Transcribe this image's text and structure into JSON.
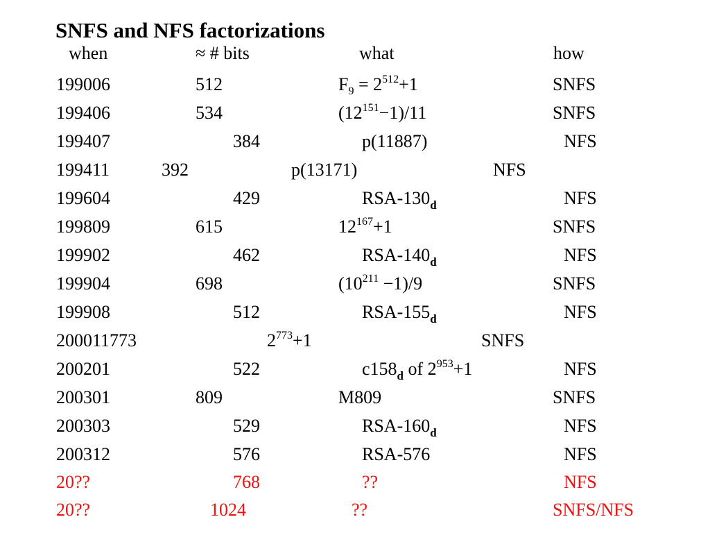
{
  "title": "SNFS and NFS factorizations",
  "headers": {
    "when": "when",
    "bits": "≈ # bits",
    "what": "what",
    "how": "how"
  },
  "rows": [
    {
      "when": "199006",
      "bits": "512",
      "what_base": "F",
      "what_sub": "9",
      "what_mid": " = 2",
      "what_sup": "512",
      "what_tail": "+1",
      "how": "SNFS"
    },
    {
      "when": "199406",
      "bits": "534",
      "what_base": "(12",
      "what_sup": "151",
      "what_tail": "−1)/11",
      "how": "SNFS"
    },
    {
      "when": "199407",
      "bits": "384",
      "what": "p(11887)",
      "how": "NFS"
    },
    {
      "when": "199411",
      "bits": "392",
      "what": "p(13171)",
      "how": "NFS"
    },
    {
      "when": "199604",
      "bits": "429",
      "what": "RSA-130",
      "what_sub": "d",
      "how": "NFS"
    },
    {
      "when": "199809",
      "bits": "615",
      "what_base": "12",
      "what_sup": "167",
      "what_tail": "+1",
      "how": "SNFS"
    },
    {
      "when": "199902",
      "bits": "462",
      "what": "RSA-140",
      "what_sub": "d",
      "how": "NFS"
    },
    {
      "when": "199904",
      "bits": "698",
      "what_base": "(10",
      "what_sup": "211",
      "what_tail": " −1)/9",
      "how": "SNFS"
    },
    {
      "when": "199908",
      "bits": "512",
      "what": "RSA-155",
      "what_sub": "d",
      "how": "NFS"
    },
    {
      "when": "200011773",
      "what_base": "2",
      "what_sup": "773",
      "what_tail": "+1",
      "how": "SNFS"
    },
    {
      "when": "200201",
      "bits": "522",
      "what": "c158",
      "what_sub": "d",
      "what_mid": " of 2",
      "what_sup": "953",
      "what_tail": "+1",
      "how": "NFS"
    },
    {
      "when": "200301",
      "bits": "809",
      "what": "M809",
      "how": "SNFS"
    },
    {
      "when": "200303",
      "bits": "529",
      "what": "RSA-160",
      "what_sub": "d",
      "how": "NFS"
    },
    {
      "when": "200312",
      "bits": "576",
      "what": "RSA-576",
      "how": "NFS"
    },
    {
      "when": "20??",
      "bits": "768",
      "what": "??",
      "how": "NFS"
    },
    {
      "when": "20??",
      "bits": "1024",
      "what": "??",
      "how": "SNFS/NFS"
    }
  ],
  "colors": {
    "text": "#000000",
    "future": "#ee1111"
  }
}
